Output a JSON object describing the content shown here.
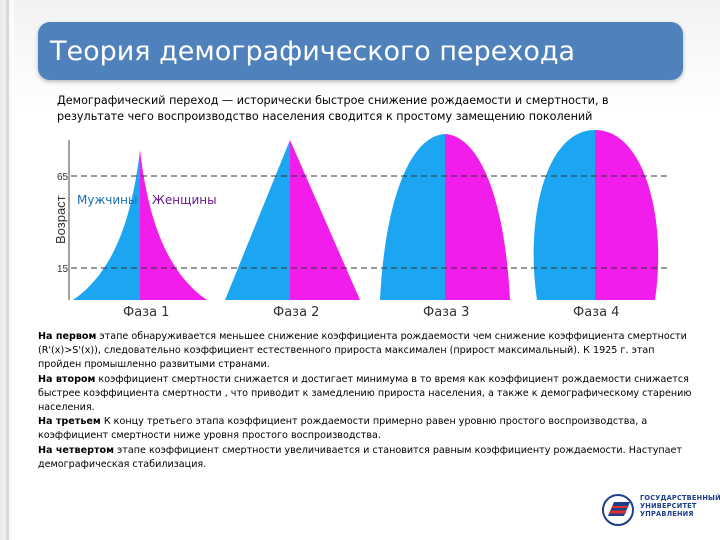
{
  "slide": {
    "title": "Теория демографического перехода",
    "definition": "Демографический переход — исторически быстрое снижение рождаемости и смертности, в результате чего воспроизводство населения сводится к простому замещению поколений"
  },
  "diagram": {
    "y_axis_label": "Возраст",
    "tick_upper": "65",
    "tick_lower": "15",
    "label_men": "Мужчины",
    "label_women": "Женщины",
    "phases": [
      "Фаза 1",
      "Фаза 2",
      "Фаза 3",
      "Фаза 4"
    ],
    "colors": {
      "men": "#1ca6f2",
      "women": "#f21ceb"
    }
  },
  "paragraphs": [
    {
      "lead_text": "На первом",
      "rest_text": " этапе обнаруживается меньшее снижение коэффициента рождаемости чем снижение коэффициента смертности (R'(x)>S'(x)), следовательно коэффициент естественного прироста максимален (прирост максимальный). К 1925 г. этап пройден промышленно развитыми странами."
    },
    {
      "lead_text": "На втором",
      "rest_text": " коэффициент смертности снижается и достигает минимума в то время как коэффициент рождаемости снижается быстрее коэффициента смертности , что приводит к замедлению прироста населения, а также к демографическому старению населения."
    },
    {
      "lead_text": "На третьем",
      "rest_text": " К концу третьего этапа коэффициент рождаемости примерно равен уровню простого воспроизводства, а коэффициент смертности ниже уровня простого воспроизводства."
    },
    {
      "lead_text": "На четвертом",
      "rest_text": " этапе коэффициент смертности увеличивается и становится равным коэффициенту рождаемости. Наступает демографическая стабилизация."
    }
  ],
  "logo": {
    "line1": "ГОСУДАРСТВЕННЫЙ",
    "line2": "УНИВЕРСИТЕТ",
    "line3": "УПРАВЛЕНИЯ"
  }
}
